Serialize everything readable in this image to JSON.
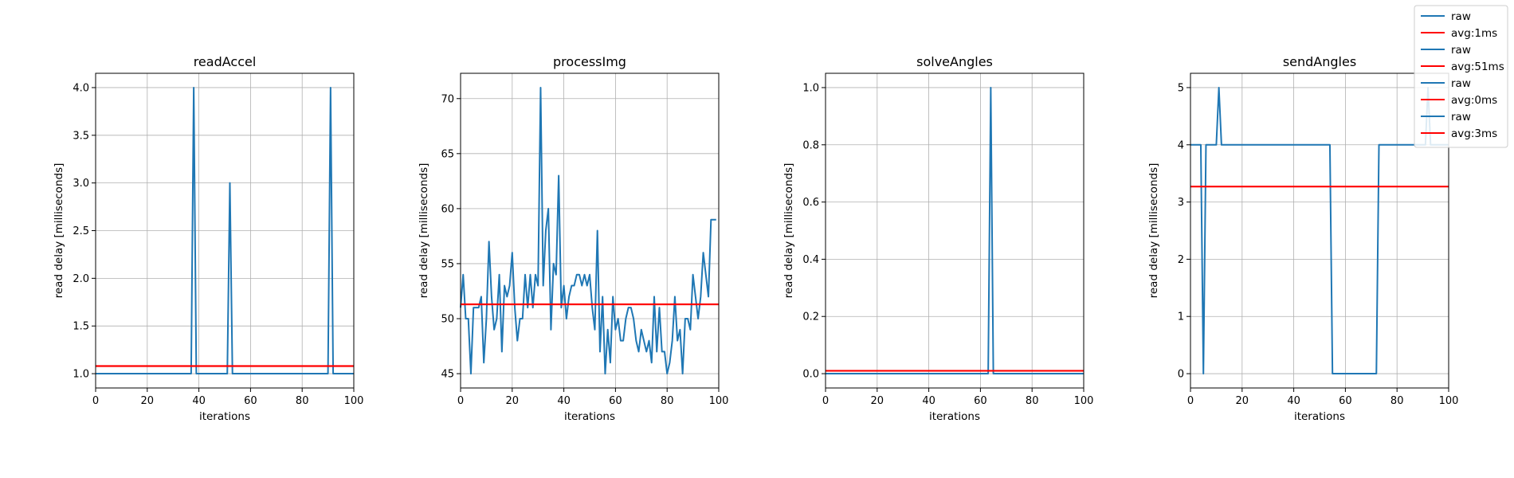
{
  "chart_data": [
    {
      "type": "line",
      "title": "readAccel",
      "xlabel": "iterations",
      "ylabel": "read delay [milliseconds]",
      "xlim": [
        0,
        100
      ],
      "ylim": [
        0.85,
        4.15
      ],
      "xticks": [
        0,
        20,
        40,
        60,
        80,
        100
      ],
      "yticks": [
        1.0,
        1.5,
        2.0,
        2.5,
        3.0,
        3.5,
        4.0
      ],
      "tick_decimals": 1,
      "grid": true,
      "series": [
        {
          "name": "raw",
          "color": "#1f77b4",
          "x": [
            0,
            37,
            38,
            39,
            51,
            52,
            53,
            90,
            91,
            92,
            100
          ],
          "y": [
            1,
            1,
            4,
            1,
            1,
            3,
            1,
            1,
            4,
            1,
            1
          ]
        },
        {
          "name": "avg:1ms",
          "color": "#ff0000",
          "x": [
            0,
            100
          ],
          "y": [
            1.08,
            1.08
          ]
        }
      ]
    },
    {
      "type": "line",
      "title": "processImg",
      "xlabel": "iterations",
      "ylabel": "read delay [milliseconds]",
      "xlim": [
        0,
        100
      ],
      "ylim": [
        43.7,
        72.3
      ],
      "xticks": [
        0,
        20,
        40,
        60,
        80,
        100
      ],
      "yticks": [
        45,
        50,
        55,
        60,
        65,
        70
      ],
      "tick_decimals": 0,
      "grid": true,
      "series": [
        {
          "name": "raw",
          "color": "#1f77b4",
          "x": [
            0,
            1,
            2,
            3,
            4,
            5,
            6,
            7,
            8,
            9,
            10,
            11,
            12,
            13,
            14,
            15,
            16,
            17,
            18,
            19,
            20,
            21,
            22,
            23,
            24,
            25,
            26,
            27,
            28,
            29,
            30,
            31,
            32,
            33,
            34,
            35,
            36,
            37,
            38,
            39,
            40,
            41,
            42,
            43,
            44,
            45,
            46,
            47,
            48,
            49,
            50,
            51,
            52,
            53,
            54,
            55,
            56,
            57,
            58,
            59,
            60,
            61,
            62,
            63,
            64,
            65,
            66,
            67,
            68,
            69,
            70,
            71,
            72,
            73,
            74,
            75,
            76,
            77,
            78,
            79,
            80,
            81,
            82,
            83,
            84,
            85,
            86,
            87,
            88,
            89,
            90,
            91,
            92,
            93,
            94,
            95,
            96,
            97,
            98,
            99
          ],
          "y": [
            51,
            54,
            50,
            50,
            45,
            51,
            51,
            51,
            52,
            46,
            50,
            57,
            52,
            49,
            50,
            54,
            47,
            53,
            52,
            53,
            56,
            51,
            48,
            50,
            50,
            54,
            51,
            54,
            51,
            54,
            53,
            71,
            53,
            58,
            60,
            49,
            55,
            54,
            63,
            51,
            53,
            50,
            52,
            53,
            53,
            54,
            54,
            53,
            54,
            53,
            54,
            51,
            49,
            58,
            47,
            52,
            45,
            49,
            46,
            52,
            49,
            50,
            48,
            48,
            50,
            51,
            51,
            50,
            48,
            47,
            49,
            48,
            47,
            48,
            46,
            52,
            47,
            51,
            47,
            47,
            45,
            46,
            48,
            52,
            48,
            49,
            45,
            50,
            50,
            49,
            54,
            52,
            50,
            52,
            56,
            54,
            52,
            59,
            59,
            59
          ]
        },
        {
          "name": "avg:51ms",
          "color": "#ff0000",
          "x": [
            0,
            100
          ],
          "y": [
            51.3,
            51.3
          ]
        }
      ]
    },
    {
      "type": "line",
      "title": "solveAngles",
      "xlabel": "iterations",
      "ylabel": "read delay [milliseconds]",
      "xlim": [
        0,
        100
      ],
      "ylim": [
        -0.05,
        1.05
      ],
      "xticks": [
        0,
        20,
        40,
        60,
        80,
        100
      ],
      "yticks": [
        0.0,
        0.2,
        0.4,
        0.6,
        0.8,
        1.0
      ],
      "tick_decimals": 1,
      "grid": true,
      "series": [
        {
          "name": "raw",
          "color": "#1f77b4",
          "x": [
            0,
            63,
            64,
            65,
            100
          ],
          "y": [
            0,
            0,
            1,
            0,
            0
          ]
        },
        {
          "name": "avg:0ms",
          "color": "#ff0000",
          "x": [
            0,
            100
          ],
          "y": [
            0.01,
            0.01
          ]
        }
      ]
    },
    {
      "type": "line",
      "title": "sendAngles",
      "xlabel": "iterations",
      "ylabel": "read delay [milliseconds]",
      "xlim": [
        0,
        100
      ],
      "ylim": [
        -0.25,
        5.25
      ],
      "xticks": [
        0,
        20,
        40,
        60,
        80,
        100
      ],
      "yticks": [
        0,
        1,
        2,
        3,
        4,
        5
      ],
      "tick_decimals": 0,
      "grid": true,
      "series": [
        {
          "name": "raw",
          "color": "#1f77b4",
          "x": [
            0,
            4,
            5,
            6,
            10,
            11,
            12,
            54,
            55,
            72,
            73,
            91,
            92,
            93,
            100
          ],
          "y": [
            4,
            4,
            0,
            4,
            4,
            5,
            4,
            4,
            0,
            0,
            4,
            4,
            5,
            4,
            4
          ]
        },
        {
          "name": "avg:3ms",
          "color": "#ff0000",
          "x": [
            0,
            100
          ],
          "y": [
            3.27,
            3.27
          ]
        }
      ]
    }
  ],
  "legend": {
    "placement": "top-right",
    "entries": [
      {
        "label": "raw",
        "color": "#1f77b4"
      },
      {
        "label": "avg:1ms",
        "color": "#ff0000"
      },
      {
        "label": "raw",
        "color": "#1f77b4"
      },
      {
        "label": "avg:51ms",
        "color": "#ff0000"
      },
      {
        "label": "raw",
        "color": "#1f77b4"
      },
      {
        "label": "avg:0ms",
        "color": "#ff0000"
      },
      {
        "label": "raw",
        "color": "#1f77b4"
      },
      {
        "label": "avg:3ms",
        "color": "#ff0000"
      }
    ]
  }
}
